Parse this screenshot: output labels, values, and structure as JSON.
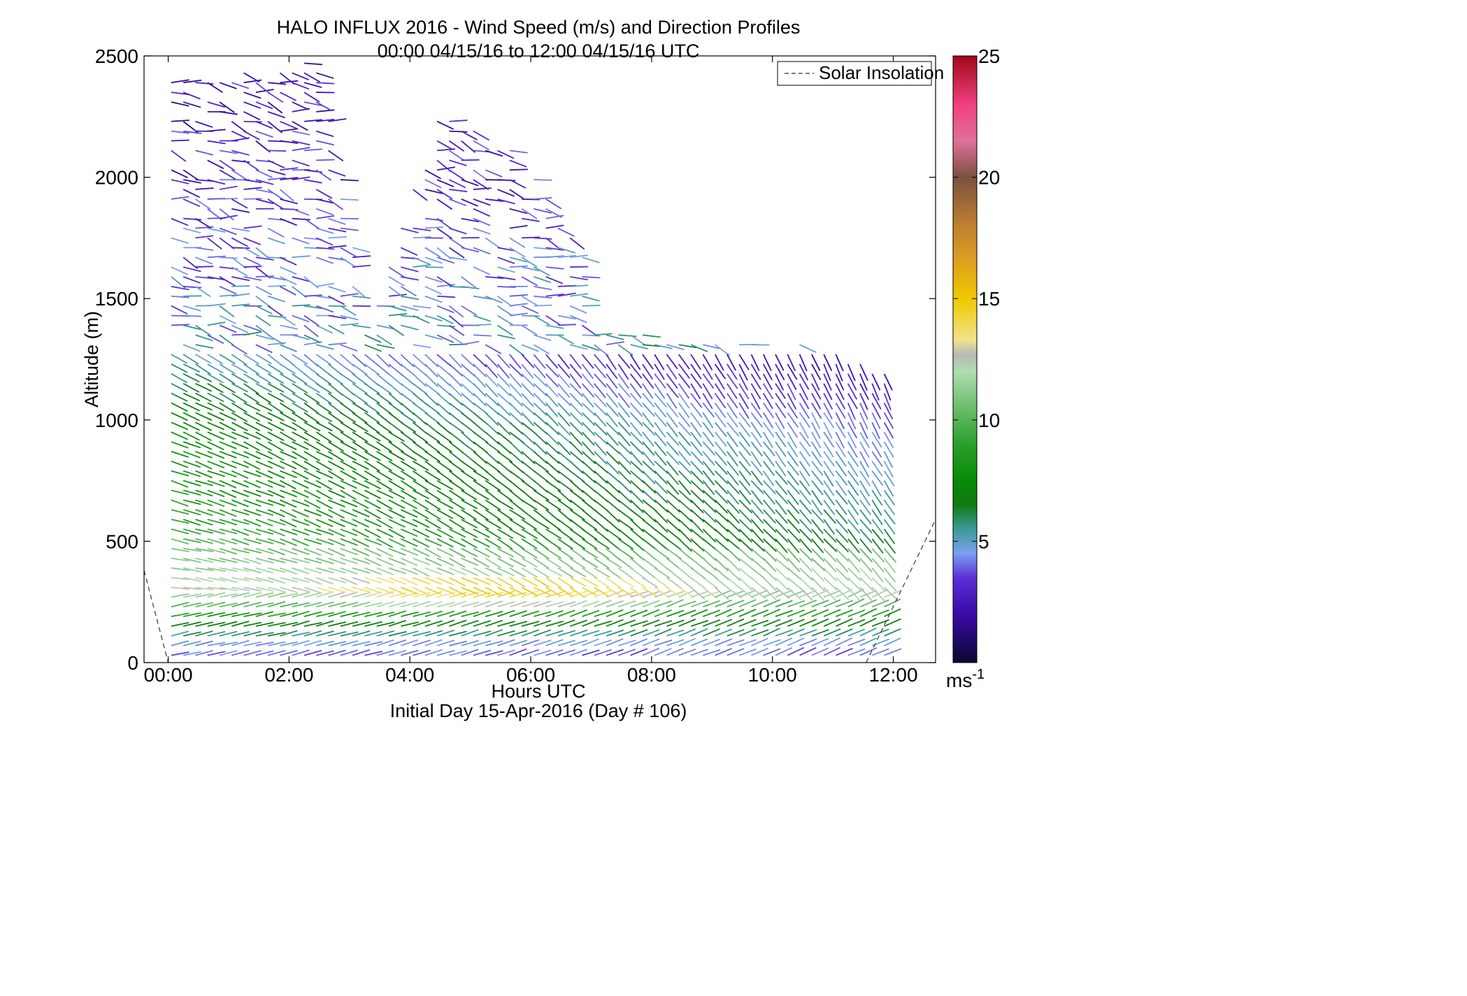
{
  "chart_data": {
    "type": "quiver",
    "title": "HALO INFLUX 2016 - Wind Speed (m/s) and Direction Profiles",
    "subtitle": "00:00 04/15/16 to 12:00 04/15/16  UTC",
    "xlabel": "Hours UTC",
    "xlabel2": "Initial Day 15-Apr-2016 (Day # 106)",
    "ylabel": "Altitude (m)",
    "xlim_hours": [
      -0.4,
      12.7
    ],
    "ylim": [
      0,
      2500
    ],
    "x_ticks": [
      {
        "hour": 0,
        "label": "00:00"
      },
      {
        "hour": 2,
        "label": "02:00"
      },
      {
        "hour": 4,
        "label": "04:00"
      },
      {
        "hour": 6,
        "label": "06:00"
      },
      {
        "hour": 8,
        "label": "08:00"
      },
      {
        "hour": 10,
        "label": "10:00"
      },
      {
        "hour": 12,
        "label": "12:00"
      }
    ],
    "y_ticks": [
      0,
      500,
      1000,
      1500,
      2000,
      2500
    ],
    "grid": false,
    "legend": {
      "position": "top-right",
      "entries": [
        {
          "label": "Solar Insolation",
          "style": "dashed",
          "color": "#555555"
        }
      ]
    },
    "colorbar": {
      "min": 0,
      "max": 25,
      "ticks": [
        5,
        10,
        15,
        20,
        25
      ],
      "unit_label": "ms",
      "unit_exponent": "-1",
      "stops": [
        {
          "v": 0,
          "color": "#0a0830"
        },
        {
          "v": 2,
          "color": "#3a0aa8"
        },
        {
          "v": 3.5,
          "color": "#5a30d8"
        },
        {
          "v": 4.5,
          "color": "#7aa0f0"
        },
        {
          "v": 5.5,
          "color": "#3a9a98"
        },
        {
          "v": 6.5,
          "color": "#107a10"
        },
        {
          "v": 7.5,
          "color": "#078a07"
        },
        {
          "v": 9,
          "color": "#2aa02a"
        },
        {
          "v": 10.5,
          "color": "#6cbc6c"
        },
        {
          "v": 12,
          "color": "#b0dcb0"
        },
        {
          "v": 12.7,
          "color": "#b8b8b8"
        },
        {
          "v": 13.3,
          "color": "#f0e48a"
        },
        {
          "v": 15,
          "color": "#f0c800"
        },
        {
          "v": 16.5,
          "color": "#e0a020"
        },
        {
          "v": 18,
          "color": "#c08030"
        },
        {
          "v": 20,
          "color": "#7a5040"
        },
        {
          "v": 21.5,
          "color": "#e0709a"
        },
        {
          "v": 23,
          "color": "#f04080"
        },
        {
          "v": 25,
          "color": "#a00818"
        }
      ]
    },
    "solar_insolation_segments": [
      {
        "points": [
          [
            -0.4,
            380
          ],
          [
            0.0,
            0
          ]
        ]
      },
      {
        "points": [
          [
            11.55,
            0
          ],
          [
            12.7,
            590
          ]
        ]
      }
    ],
    "wind_field": {
      "description": "Wind barbs colored by wind speed (m/s); arrows mostly westerly aloft, stronger 8-14 m/s in lowest 1.3 km early, sampled every ~15 min",
      "time_step_hours": 0.2,
      "time_range_hours": [
        0.05,
        11.95
      ],
      "altitude_range_m": [
        30,
        2500
      ],
      "speed_model": [
        {
          "alt": 50,
          "speed": 4
        },
        {
          "alt": 150,
          "speed": 7
        },
        {
          "alt": 300,
          "speed": 12.5
        },
        {
          "alt": 600,
          "speed": 9
        },
        {
          "alt": 1000,
          "speed": 7.5
        },
        {
          "alt": 1300,
          "speed": 5
        },
        {
          "alt": 2000,
          "speed": 3
        },
        {
          "alt": 2500,
          "speed": 2.5
        }
      ],
      "data_top_profile": [
        {
          "hour": 0.0,
          "top": 2400
        },
        {
          "hour": 2.5,
          "top": 2480
        },
        {
          "hour": 3.3,
          "top": 1400
        },
        {
          "hour": 4.5,
          "top": 2280
        },
        {
          "hour": 5.5,
          "top": 2150
        },
        {
          "hour": 6.8,
          "top": 1820
        },
        {
          "hour": 7.0,
          "top": 1360
        },
        {
          "hour": 10.5,
          "top": 1320
        },
        {
          "hour": 11.9,
          "top": 1200
        }
      ]
    }
  }
}
